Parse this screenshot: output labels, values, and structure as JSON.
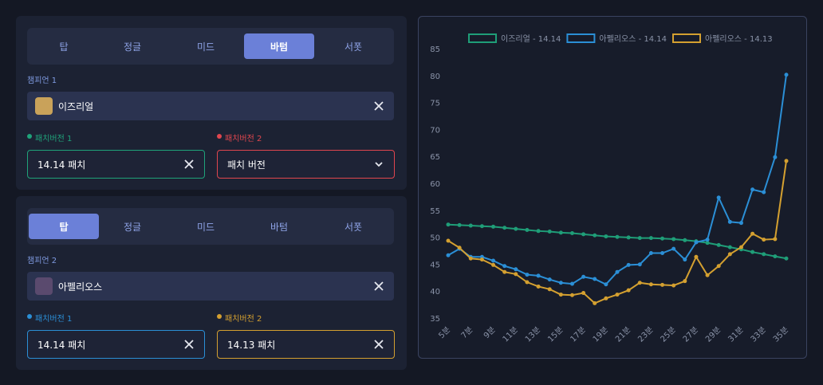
{
  "panels": [
    {
      "tabs": [
        "탑",
        "정글",
        "미드",
        "바텀",
        "서폿"
      ],
      "active_tab": 3,
      "champion_label": "챔피언 1",
      "champion": "이즈리얼",
      "patches": [
        {
          "label": "패치버전 1",
          "value": "14.14 패치",
          "color": "#1fa37a",
          "clearable": true
        },
        {
          "label": "패치버전 2",
          "value": "패치 버전",
          "color": "#e0464e",
          "clearable": false
        }
      ]
    },
    {
      "tabs": [
        "탑",
        "정글",
        "미드",
        "바텀",
        "서폿"
      ],
      "active_tab": 0,
      "champion_label": "챔피언 2",
      "champion": "아펠리오스",
      "patches": [
        {
          "label": "패치버전 1",
          "value": "14.14 패치",
          "color": "#2b8fd6",
          "clearable": true
        },
        {
          "label": "패치버전 2",
          "value": "14.13 패치",
          "color": "#d4a030",
          "clearable": true
        }
      ]
    }
  ],
  "chart_data": {
    "type": "line",
    "categories": [
      "5분",
      null,
      "7분",
      null,
      "9분",
      null,
      "11분",
      null,
      "13분",
      null,
      "15분",
      null,
      "17분",
      null,
      "19분",
      null,
      "21분",
      null,
      "23분",
      null,
      "25분",
      null,
      "27분",
      null,
      "29분",
      null,
      "31분",
      null,
      "33분",
      null,
      "35분"
    ],
    "series": [
      {
        "name": "이즈리얼 - 14.14",
        "color": "#1f9e78",
        "values": [
          52.5,
          52.4,
          52.3,
          52.2,
          52.1,
          51.9,
          51.7,
          51.5,
          51.3,
          51.2,
          51.0,
          50.9,
          50.7,
          50.5,
          50.3,
          50.2,
          50.1,
          50.0,
          50.0,
          49.9,
          49.8,
          49.6,
          49.4,
          49.1,
          48.7,
          48.3,
          47.9,
          47.4,
          47.0,
          46.6,
          46.2
        ]
      },
      {
        "name": "아펠리오스 - 14.14",
        "color": "#2b8fd6",
        "values": [
          46.8,
          48,
          46.5,
          46.5,
          45.8,
          44.8,
          44.2,
          43.2,
          43,
          42.3,
          41.7,
          41.5,
          42.8,
          42.4,
          41.4,
          43.7,
          45,
          45.1,
          47.2,
          47.2,
          48,
          46,
          49.2,
          49.7,
          57.5,
          53,
          52.8,
          59,
          58.5,
          65,
          80.3
        ]
      },
      {
        "name": "아펠리오스 - 14.13",
        "color": "#d4a030",
        "values": [
          49.5,
          48.2,
          46.2,
          46,
          45,
          43.7,
          43.3,
          41.8,
          41,
          40.5,
          39.5,
          39.4,
          39.8,
          37.9,
          38.8,
          39.5,
          40.3,
          41.7,
          41.4,
          41.3,
          41.2,
          42,
          46.5,
          43.1,
          44.8,
          47,
          48.3,
          50.8,
          49.7,
          49.8,
          64.3
        ]
      }
    ],
    "ylim": [
      35,
      85
    ],
    "yticks": [
      35,
      40,
      45,
      50,
      55,
      60,
      65,
      70,
      75,
      80,
      85
    ],
    "grid": false
  }
}
